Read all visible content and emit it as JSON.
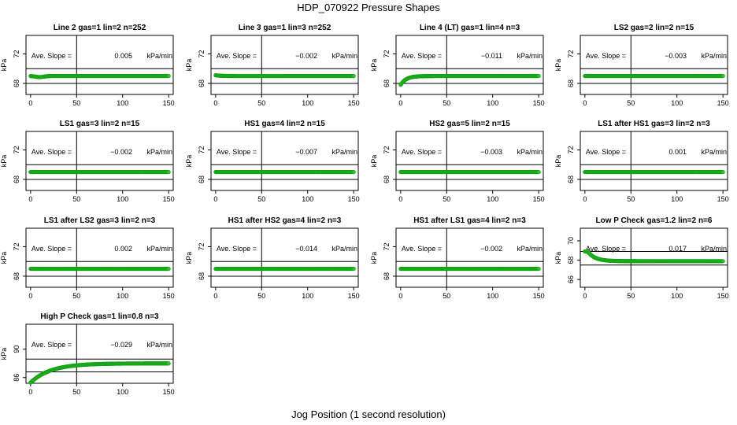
{
  "figure": {
    "title": "HDP_070922  Pressure Shapes",
    "xlabel": "Jog Position (1 second resolution)"
  },
  "chart_data": [
    {
      "type": "scatter",
      "title": "Line 2 gas=1 lin=2 n=252",
      "annotation_label": "Ave. Slope =",
      "slope": "0.005",
      "units": "kPa/min",
      "ylabel": "kPa",
      "xticks": [
        "0",
        "50",
        "100",
        "150"
      ],
      "yticks": [
        "68",
        "72"
      ],
      "xlim": [
        -5,
        155
      ],
      "ylim": [
        66.5,
        74.5
      ],
      "hlines": [
        68,
        70
      ],
      "vline": 50,
      "shape": {
        "base": 69.0,
        "start": 69.0,
        "dip": 0.15,
        "rise": 0
      }
    },
    {
      "type": "scatter",
      "title": "Line 3 gas=1 lin=3 n=252",
      "annotation_label": "Ave. Slope =",
      "slope": "-0.002",
      "units": "kPa/min",
      "ylabel": "kPa",
      "xticks": [
        "0",
        "50",
        "100",
        "150"
      ],
      "yticks": [
        "68",
        "72"
      ],
      "xlim": [
        -5,
        155
      ],
      "ylim": [
        66.5,
        74.5
      ],
      "hlines": [
        68,
        70
      ],
      "vline": 50,
      "shape": {
        "base": 69.0,
        "start": 69.1,
        "dip": 0,
        "rise": 0
      }
    },
    {
      "type": "scatter",
      "title": "Line 4 (LT) gas=1 lin=4 n=3",
      "annotation_label": "Ave. Slope =",
      "slope": "-0.011",
      "units": "kPa/min",
      "ylabel": "kPa",
      "xticks": [
        "0",
        "50",
        "100",
        "150"
      ],
      "yticks": [
        "68",
        "72"
      ],
      "xlim": [
        -5,
        155
      ],
      "ylim": [
        66.5,
        74.5
      ],
      "hlines": [
        68,
        70
      ],
      "vline": 50,
      "shape": {
        "base": 69.0,
        "start": 67.8,
        "dip": 0,
        "rise": 6
      }
    },
    {
      "type": "scatter",
      "title": "LS2 gas=2 lin=2 n=15",
      "annotation_label": "Ave. Slope =",
      "slope": "-0.003",
      "units": "kPa/min",
      "ylabel": "kPa",
      "xticks": [
        "0",
        "50",
        "100",
        "150"
      ],
      "yticks": [
        "68",
        "72"
      ],
      "xlim": [
        -5,
        155
      ],
      "ylim": [
        66.5,
        74.5
      ],
      "hlines": [
        68,
        70
      ],
      "vline": 50,
      "shape": {
        "base": 69.0,
        "start": 69.0,
        "dip": 0,
        "rise": 0
      }
    },
    {
      "type": "scatter",
      "title": "LS1 gas=3 lin=2 n=15",
      "annotation_label": "Ave. Slope =",
      "slope": "-0.002",
      "units": "kPa/min",
      "ylabel": "kPa",
      "xticks": [
        "0",
        "50",
        "100",
        "150"
      ],
      "yticks": [
        "68",
        "72"
      ],
      "xlim": [
        -5,
        155
      ],
      "ylim": [
        66.5,
        74.5
      ],
      "hlines": [
        68,
        70
      ],
      "vline": 50,
      "shape": {
        "base": 69.0,
        "start": 69.0,
        "dip": 0,
        "rise": 0
      }
    },
    {
      "type": "scatter",
      "title": "HS1 gas=4 lin=2 n=15",
      "annotation_label": "Ave. Slope =",
      "slope": "-0.007",
      "units": "kPa/min",
      "ylabel": "kPa",
      "xticks": [
        "0",
        "50",
        "100",
        "150"
      ],
      "yticks": [
        "68",
        "72"
      ],
      "xlim": [
        -5,
        155
      ],
      "ylim": [
        66.5,
        74.5
      ],
      "hlines": [
        68,
        70
      ],
      "vline": 50,
      "shape": {
        "base": 69.0,
        "start": 69.0,
        "dip": 0,
        "rise": 0
      }
    },
    {
      "type": "scatter",
      "title": "HS2 gas=5 lin=2 n=15",
      "annotation_label": "Ave. Slope =",
      "slope": "-0.003",
      "units": "kPa/min",
      "ylabel": "kPa",
      "xticks": [
        "0",
        "50",
        "100",
        "150"
      ],
      "yticks": [
        "68",
        "72"
      ],
      "xlim": [
        -5,
        155
      ],
      "ylim": [
        66.5,
        74.5
      ],
      "hlines": [
        68,
        70
      ],
      "vline": 50,
      "shape": {
        "base": 69.0,
        "start": 69.0,
        "dip": 0,
        "rise": 0
      }
    },
    {
      "type": "scatter",
      "title": "LS1 after HS1 gas=3 lin=2 n=3",
      "annotation_label": "Ave. Slope =",
      "slope": "0.001",
      "units": "kPa/min",
      "ylabel": "kPa",
      "xticks": [
        "0",
        "50",
        "100",
        "150"
      ],
      "yticks": [
        "68",
        "72"
      ],
      "xlim": [
        -5,
        155
      ],
      "ylim": [
        66.5,
        74.5
      ],
      "hlines": [
        68,
        70
      ],
      "vline": 50,
      "shape": {
        "base": 69.0,
        "start": 69.0,
        "dip": 0,
        "rise": 0
      }
    },
    {
      "type": "scatter",
      "title": "LS1 after LS2 gas=3 lin=2 n=3",
      "annotation_label": "Ave. Slope =",
      "slope": "0.002",
      "units": "kPa/min",
      "ylabel": "kPa",
      "xticks": [
        "0",
        "50",
        "100",
        "150"
      ],
      "yticks": [
        "68",
        "72"
      ],
      "xlim": [
        -5,
        155
      ],
      "ylim": [
        66.5,
        74.5
      ],
      "hlines": [
        68,
        70
      ],
      "vline": 50,
      "shape": {
        "base": 69.0,
        "start": 69.0,
        "dip": 0,
        "rise": 0
      }
    },
    {
      "type": "scatter",
      "title": "HS1 after HS2 gas=4 lin=2 n=3",
      "annotation_label": "Ave. Slope =",
      "slope": "-0.014",
      "units": "kPa/min",
      "ylabel": "kPa",
      "xticks": [
        "0",
        "50",
        "100",
        "150"
      ],
      "yticks": [
        "68",
        "72"
      ],
      "xlim": [
        -5,
        155
      ],
      "ylim": [
        66.5,
        74.5
      ],
      "hlines": [
        68,
        70
      ],
      "vline": 50,
      "shape": {
        "base": 69.0,
        "start": 69.0,
        "dip": 0,
        "rise": 0
      }
    },
    {
      "type": "scatter",
      "title": "HS1 after LS1 gas=4 lin=2 n=3",
      "annotation_label": "Ave. Slope =",
      "slope": "-0.002",
      "units": "kPa/min",
      "ylabel": "kPa",
      "xticks": [
        "0",
        "50",
        "100",
        "150"
      ],
      "yticks": [
        "68",
        "72"
      ],
      "xlim": [
        -5,
        155
      ],
      "ylim": [
        66.5,
        74.5
      ],
      "hlines": [
        68,
        70
      ],
      "vline": 50,
      "shape": {
        "base": 69.0,
        "start": 69.0,
        "dip": 0,
        "rise": 0
      }
    },
    {
      "type": "scatter",
      "title": "Low P Check gas=1.2 lin=2 n=6",
      "annotation_label": "Ave. Slope =",
      "slope": "0.017",
      "units": "kPa/min",
      "ylabel": "kPa",
      "xticks": [
        "0",
        "50",
        "100",
        "150"
      ],
      "yticks": [
        "66",
        "68",
        "70"
      ],
      "xlim": [
        -5,
        155
      ],
      "ylim": [
        65.2,
        71.3
      ],
      "hlines": [
        67.5,
        68.9
      ],
      "vline": 50,
      "shape": {
        "base": 67.9,
        "start": 68.9,
        "dip": 0,
        "rise": -8
      }
    },
    {
      "type": "scatter",
      "title": "High P Check gas=1 lin=0.8 n=3",
      "annotation_label": "Ave. Slope =",
      "slope": "-0.029",
      "units": "kPa/min",
      "ylabel": "kPa",
      "xticks": [
        "0",
        "50",
        "100",
        "150"
      ],
      "yticks": [
        "86",
        "90"
      ],
      "xlim": [
        -5,
        155
      ],
      "ylim": [
        85.2,
        93.5
      ],
      "hlines": [
        86.8,
        88.6
      ],
      "vline": 50,
      "shape": {
        "base": 88.0,
        "start": 85.3,
        "dip": 0,
        "rise": 22
      }
    }
  ]
}
